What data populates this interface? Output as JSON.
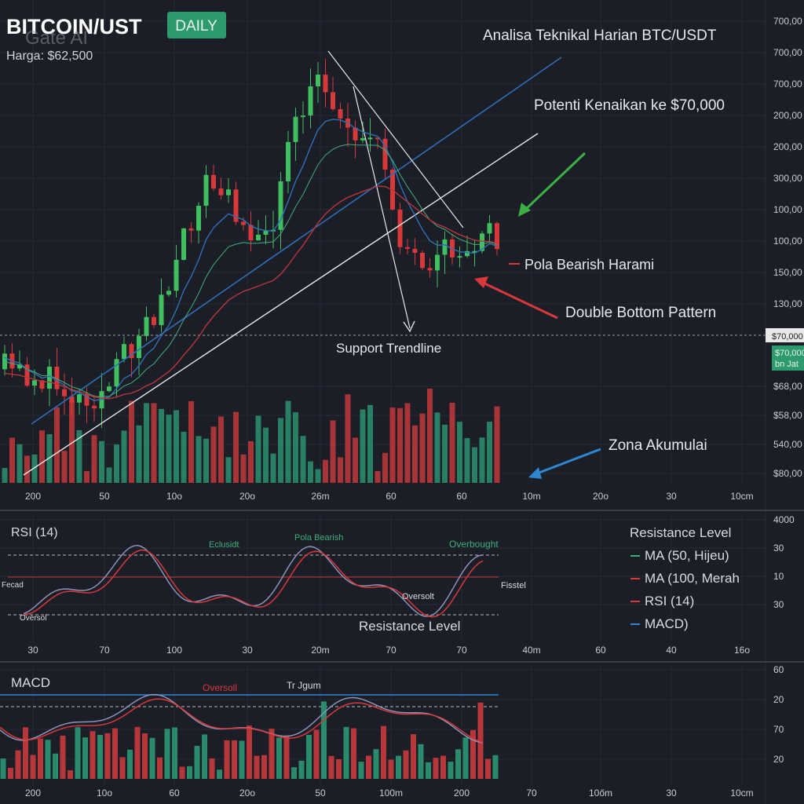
{
  "header": {
    "title": "BITCOIN/UST",
    "badge": "DAILY",
    "watermark": "Gate AI",
    "price": "Harga: $62,500"
  },
  "main": {
    "annotations": {
      "heading": "Analisa Teknikal Harian BTC/USDT",
      "target": "Potenti Kenaikan ke $70,000",
      "harami": "Pola Bearish Harami",
      "double_bottom": "Double Bottom Pattern",
      "support": "Support Trendline",
      "accumulation": "Zona Akumulai"
    },
    "right_axis": [
      "700,00",
      "700,00",
      "700,00",
      "200,00",
      "200,00",
      "300,00",
      "100,00",
      "100,00",
      "150,00",
      "130,00"
    ],
    "price_tag": "$70,000",
    "green_tag": [
      "$70,000",
      "bn Jat"
    ],
    "right_axis_low": [
      "$68,00",
      "$58,00",
      "540,00",
      "$80,00"
    ],
    "x_axis": [
      "200",
      "50",
      "10o",
      "20o",
      "26m",
      "60",
      "60",
      "10m",
      "20o",
      "30",
      "10cm"
    ]
  },
  "rsi": {
    "title": "RSI (14)",
    "labels": {
      "a": "Eclusidt",
      "b": "Pola Bearish",
      "c": "Overbought",
      "d": "Fecad",
      "e": "Oversol",
      "f": "Oversolt",
      "g": "Fisstel",
      "h": "Resistance Level"
    },
    "legend": [
      "Resistance Level",
      "MA (50, Hijeu)",
      "MA (100, Merah",
      "RSI (14)",
      "MACD)"
    ],
    "right_axis": [
      "4000",
      "30",
      "10",
      "30"
    ],
    "x_axis": [
      "30",
      "70",
      "100",
      "30",
      "20m",
      "70",
      "70",
      "40m",
      "60",
      "40",
      "16o"
    ]
  },
  "macd": {
    "title": "MACD",
    "labels": {
      "a": "Oversoll",
      "b": "Tr Jgum"
    },
    "right_axis": [
      "60",
      "20",
      "70",
      "20"
    ],
    "x_axis": [
      "200",
      "10o",
      "60",
      "20o",
      "50",
      "100m",
      "200",
      "70",
      "10őm",
      "30",
      "10cm"
    ]
  }
}
